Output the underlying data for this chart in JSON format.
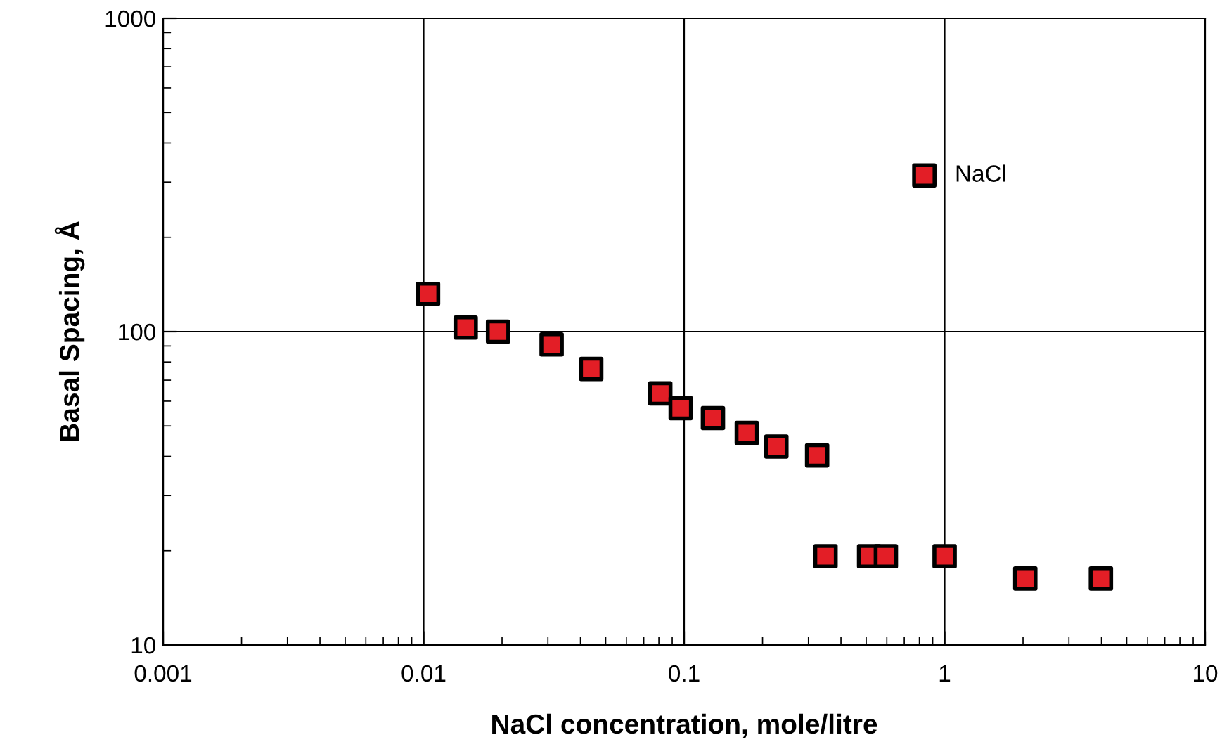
{
  "chart_data": {
    "type": "scatter",
    "xlabel": "NaCl concentration, mole/litre",
    "ylabel": "Basal Spacing, Å",
    "log": "xy",
    "grid": true,
    "legend": "top right",
    "marker": "square",
    "xlim": [
      0.001,
      10
    ],
    "xticks": [
      0.001,
      0.01,
      0.1,
      1,
      10
    ],
    "ylim": [
      10,
      1000
    ],
    "yticks": [
      10,
      100,
      1000
    ],
    "series": [
      {
        "name": "NaCl",
        "color": "#e31e26",
        "x": [
          0.0104,
          0.0145,
          0.0193,
          0.031,
          0.044,
          0.081,
          0.097,
          0.129,
          0.174,
          0.226,
          0.324,
          0.349,
          0.513,
          0.595,
          1.0,
          2.04,
          3.98
        ],
        "values": [
          132,
          103,
          100,
          91,
          76,
          63.5,
          57,
          53,
          47.5,
          43,
          40.3,
          19.2,
          19.2,
          19.2,
          19.2,
          16.3,
          16.3
        ]
      }
    ]
  }
}
